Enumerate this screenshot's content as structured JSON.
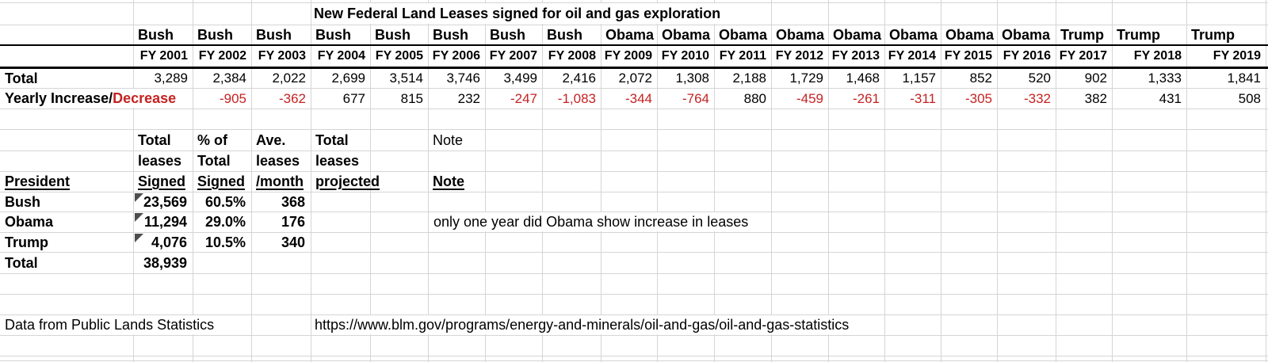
{
  "sheet": {
    "title": "New Federal Land Leases signed for oil and gas exploration",
    "row_labels": {
      "total": "Total",
      "yearly_prefix": "Yearly Increase/",
      "yearly_suffix": "Decrease"
    },
    "columns": [
      {
        "president": "Bush",
        "fy": "FY 2001",
        "total": "3,289",
        "change": ""
      },
      {
        "president": "Bush",
        "fy": "FY 2002",
        "total": "2,384",
        "change": "-905"
      },
      {
        "president": "Bush",
        "fy": "FY 2003",
        "total": "2,022",
        "change": "-362"
      },
      {
        "president": "Bush",
        "fy": "FY 2004",
        "total": "2,699",
        "change": "677"
      },
      {
        "president": "Bush",
        "fy": "FY 2005",
        "total": "3,514",
        "change": "815"
      },
      {
        "president": "Bush",
        "fy": "FY 2006",
        "total": "3,746",
        "change": "232"
      },
      {
        "president": "Bush",
        "fy": "FY 2007",
        "total": "3,499",
        "change": "-247"
      },
      {
        "president": "Bush",
        "fy": "FY 2008",
        "total": "2,416",
        "change": "-1,083"
      },
      {
        "president": "Obama",
        "fy": "FY 2009",
        "total": "2,072",
        "change": "-344"
      },
      {
        "president": "Obama",
        "fy": "FY 2010",
        "total": "1,308",
        "change": "-764"
      },
      {
        "president": "Obama",
        "fy": "FY 2011",
        "total": "2,188",
        "change": "880"
      },
      {
        "president": "Obama",
        "fy": "FY 2012",
        "total": "1,729",
        "change": "-459"
      },
      {
        "president": "Obama",
        "fy": "FY 2013",
        "total": "1,468",
        "change": "-261"
      },
      {
        "president": "Obama",
        "fy": "FY 2014",
        "total": "1,157",
        "change": "-311"
      },
      {
        "president": "Obama",
        "fy": "FY 2015",
        "total": "852",
        "change": "-305"
      },
      {
        "president": "Obama",
        "fy": "FY 2016",
        "total": "520",
        "change": "-332"
      },
      {
        "president": "Trump",
        "fy": "FY 2017",
        "total": "902",
        "change": "382"
      },
      {
        "president": "Trump",
        "fy": "FY 2018",
        "total": "1,333",
        "change": "431"
      },
      {
        "president": "Trump",
        "fy": "FY 2019",
        "total": "1,841",
        "change": "508"
      }
    ],
    "summary": {
      "header": {
        "president": "President",
        "signed": [
          "Total",
          "leases",
          "Signed"
        ],
        "pct": [
          "% of",
          "Total",
          "Signed"
        ],
        "per_month": [
          "Ave.",
          "leases",
          "/month"
        ],
        "projected": [
          "Total",
          "leases",
          "projected"
        ],
        "note_top": "Note",
        "note": "Note"
      },
      "rows": [
        {
          "president": "Bush",
          "signed": "23,569",
          "pct": "60.5%",
          "per_month": "368"
        },
        {
          "president": "Obama",
          "signed": "11,294",
          "pct": "29.0%",
          "per_month": "176",
          "note": "only one year did Obama show increase in leases"
        },
        {
          "president": "Trump",
          "signed": "4,076",
          "pct": "10.5%",
          "per_month": "340"
        }
      ],
      "total": {
        "label": "Total",
        "signed": "38,939"
      }
    },
    "footer": {
      "source": "Data from Public Lands Statistics",
      "url": "https://www.blm.gov/programs/energy-and-minerals/oil-and-gas/oil-and-gas-statistics"
    },
    "colors": {
      "negative_red": "#C62222",
      "gridline": "#D5D5D5",
      "border_black": "#000000",
      "comment_flag": "#4D4D4D"
    }
  }
}
